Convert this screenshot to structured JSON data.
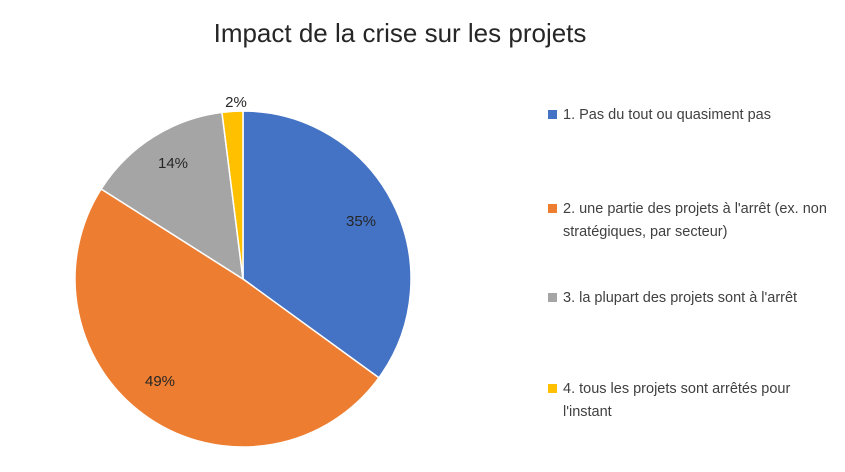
{
  "chart_data": {
    "type": "pie",
    "title": "Impact de la crise sur les projets",
    "legend_position": "right",
    "slices": [
      {
        "label": "1. Pas du tout ou quasiment pas",
        "value": 35,
        "value_label": "35%",
        "color": "#4472C4"
      },
      {
        "label": "2. une partie des projets à l'arrêt (ex. non stratégiques, par secteur)",
        "value": 49,
        "value_label": "49%",
        "color": "#ED7D31"
      },
      {
        "label": "3. la plupart des projets sont à l'arrêt",
        "value": 14,
        "value_label": "14%",
        "color": "#A5A5A5"
      },
      {
        "label": "4. tous les projets sont arrêtés pour l'instant",
        "value": 2,
        "value_label": "2%",
        "color": "#FFC000"
      }
    ]
  }
}
